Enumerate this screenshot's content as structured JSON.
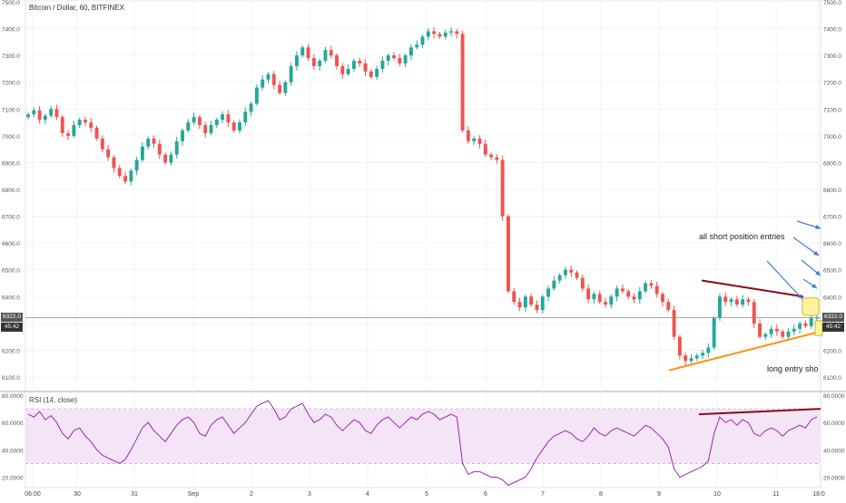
{
  "header": {
    "title": "Bitcoin / Dollar, 60, BITFINEX",
    "rsi_title": "RSI (14, close)"
  },
  "annotations": {
    "short_entries": "all short position entries",
    "long_entry": "long entry sho"
  },
  "price_markers": {
    "last_price": "6322.0",
    "countdown": "45:42"
  },
  "colors": {
    "up": "#26a69a",
    "down": "#ef5350",
    "rsi_line": "#9c27b0",
    "rsi_band": "#f3e5f5",
    "resistance_line": "#8b0a1a",
    "support_line": "#f7931a",
    "arrow": "#3b7dd8",
    "highlight_box": "#fff3a0"
  },
  "chart_data": [
    {
      "type": "candlestick",
      "title": "Bitcoin / Dollar, 60, BITFINEX",
      "ylim": [
        6100,
        7500
      ],
      "y_ticks": [
        "7500.0",
        "7400.0",
        "7300.0",
        "7200.0",
        "7100.0",
        "7000.0",
        "6900.0",
        "6800.0",
        "6700.0",
        "6600.0",
        "6500.0",
        "6400.0",
        "6300.0",
        "6200.0",
        "6100.0"
      ],
      "x_ticks": [
        "06:00",
        "30",
        "31",
        "Sep",
        "2",
        "3",
        "4",
        "5",
        "6",
        "7",
        "8",
        "9",
        "10",
        "11",
        "18:0"
      ],
      "grid": true,
      "last_price": 6322.0,
      "series_close": [
        7080,
        7095,
        7060,
        7075,
        7100,
        7070,
        7010,
        7000,
        7040,
        7060,
        7050,
        7030,
        6990,
        6950,
        6920,
        6880,
        6850,
        6830,
        6870,
        6910,
        6960,
        6990,
        6970,
        6930,
        6900,
        6930,
        6980,
        7020,
        7050,
        7070,
        7040,
        7010,
        7040,
        7060,
        7080,
        7050,
        7020,
        7050,
        7090,
        7120,
        7180,
        7210,
        7230,
        7190,
        7160,
        7200,
        7260,
        7300,
        7330,
        7290,
        7260,
        7280,
        7320,
        7300,
        7260,
        7230,
        7250,
        7280,
        7270,
        7240,
        7220,
        7250,
        7280,
        7300,
        7290,
        7270,
        7300,
        7330,
        7340,
        7370,
        7390,
        7380,
        7370,
        7385,
        7390,
        7380,
        7020,
        6980,
        6990,
        6970,
        6930,
        6920,
        6910,
        6700,
        6420,
        6380,
        6360,
        6400,
        6370,
        6350,
        6400,
        6430,
        6460,
        6480,
        6500,
        6490,
        6470,
        6430,
        6390,
        6410,
        6380,
        6370,
        6400,
        6430,
        6420,
        6400,
        6390,
        6420,
        6450,
        6440,
        6410,
        6380,
        6350,
        6250,
        6180,
        6160,
        6170,
        6180,
        6190,
        6210,
        6320,
        6400,
        6380,
        6390,
        6370,
        6390,
        6380,
        6300,
        6250,
        6260,
        6280,
        6270,
        6250,
        6270,
        6280,
        6300,
        6290,
        6320,
        6322
      ]
    },
    {
      "type": "line",
      "title": "RSI (14, close)",
      "ylim": [
        15,
        80
      ],
      "y_ticks": [
        "80.0000",
        "60.0000",
        "40.0000",
        "20.0000"
      ],
      "band": [
        30,
        70
      ],
      "series_values": [
        66,
        64,
        68,
        62,
        65,
        60,
        52,
        48,
        54,
        56,
        50,
        46,
        40,
        36,
        34,
        32,
        30,
        33,
        40,
        48,
        56,
        60,
        54,
        50,
        46,
        52,
        58,
        62,
        64,
        60,
        52,
        50,
        58,
        62,
        64,
        58,
        52,
        56,
        60,
        66,
        72,
        74,
        76,
        70,
        62,
        64,
        70,
        72,
        74,
        66,
        60,
        62,
        66,
        64,
        58,
        54,
        58,
        62,
        60,
        54,
        52,
        58,
        62,
        64,
        60,
        56,
        60,
        64,
        62,
        66,
        68,
        66,
        62,
        64,
        66,
        64,
        30,
        22,
        24,
        24,
        22,
        20,
        20,
        18,
        14,
        16,
        18,
        20,
        26,
        34,
        40,
        46,
        50,
        52,
        54,
        52,
        48,
        46,
        50,
        56,
        52,
        50,
        54,
        56,
        54,
        52,
        50,
        54,
        58,
        56,
        52,
        48,
        42,
        26,
        20,
        22,
        24,
        26,
        28,
        32,
        52,
        64,
        60,
        62,
        58,
        62,
        60,
        52,
        50,
        54,
        56,
        54,
        50,
        54,
        56,
        58,
        56,
        62,
        64
      ]
    }
  ]
}
